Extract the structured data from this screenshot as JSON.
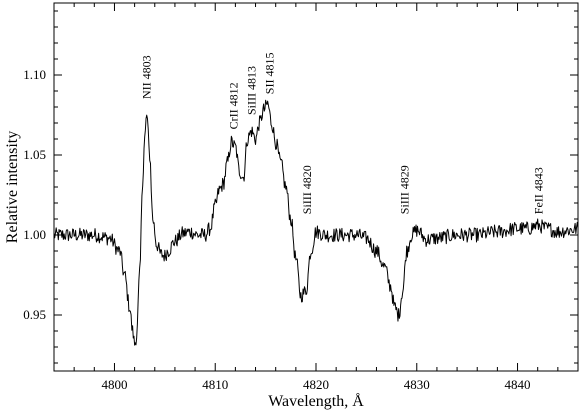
{
  "chart_data": {
    "type": "line",
    "title": "",
    "xlabel": "Wavelength, Å",
    "ylabel": "Relative intensity",
    "xlim": [
      4794,
      4846
    ],
    "ylim": [
      0.915,
      1.145
    ],
    "xticks": [
      4800,
      4810,
      4820,
      4830,
      4840
    ],
    "xtick_labels": [
      "4800",
      "4810",
      "4820",
      "4830",
      "4840"
    ],
    "yticks": [
      0.95,
      1.0,
      1.05,
      1.1
    ],
    "ytick_labels": [
      "0.95",
      "1.00",
      "1.05",
      "1.10"
    ],
    "grid": false,
    "legend": "none",
    "line_color": "#000000",
    "series": [
      {
        "name": "",
        "x": [
          4794.0,
          4796.0,
          4798.0,
          4799.5,
          4800.5,
          4801.0,
          4801.5,
          4801.8,
          4802.0,
          4802.2,
          4802.5,
          4802.8,
          4803.0,
          4803.2,
          4803.5,
          4803.8,
          4804.2,
          4804.6,
          4805.0,
          4805.3,
          4806.0,
          4806.8,
          4807.5,
          4808.3,
          4809.0,
          4809.5,
          4810.0,
          4810.4,
          4810.8,
          4811.2,
          4811.6,
          4812.0,
          4812.4,
          4812.8,
          4813.2,
          4813.6,
          4814.0,
          4814.4,
          4814.8,
          4815.2,
          4815.6,
          4816.0,
          4816.5,
          4817.0,
          4817.5,
          4818.0,
          4818.5,
          4819.0,
          4819.5,
          4820.0,
          4821.0,
          4822.0,
          4823.0,
          4824.0,
          4825.0,
          4826.0,
          4826.8,
          4827.4,
          4827.8,
          4828.2,
          4828.6,
          4829.0,
          4829.5,
          4830.0,
          4831.0,
          4832.0,
          4834.0,
          4836.0,
          4838.0,
          4840.0,
          4841.0,
          4842.0,
          4843.0,
          4844.0,
          4845.0,
          4846.0
        ],
        "y": [
          1.0,
          1.0,
          1.0,
          0.998,
          0.99,
          0.975,
          0.955,
          0.94,
          0.932,
          0.937,
          0.975,
          1.035,
          1.06,
          1.075,
          1.05,
          1.01,
          0.994,
          0.988,
          0.987,
          0.99,
          0.996,
          1.001,
          1.002,
          1.0,
          1.0,
          1.004,
          1.018,
          1.028,
          1.032,
          1.045,
          1.058,
          1.055,
          1.04,
          1.036,
          1.06,
          1.065,
          1.06,
          1.07,
          1.078,
          1.082,
          1.07,
          1.058,
          1.045,
          1.03,
          1.01,
          0.985,
          0.962,
          0.965,
          0.99,
          1.002,
          1.0,
          1.0,
          1.0,
          1.0,
          0.998,
          0.99,
          0.98,
          0.968,
          0.955,
          0.95,
          0.965,
          0.99,
          1.0,
          1.003,
          0.997,
          0.998,
          1.0,
          1.0,
          1.002,
          1.004,
          1.004,
          1.006,
          1.004,
          1.002,
          1.003,
          1.004
        ]
      }
    ],
    "annotations": [
      {
        "text": "NII 4803",
        "x": 4803.2,
        "y": 1.085
      },
      {
        "text": "CrII 4812",
        "x": 4811.8,
        "y": 1.066
      },
      {
        "text": "SiIII 4813",
        "x": 4813.6,
        "y": 1.075
      },
      {
        "text": "SII 4815",
        "x": 4815.4,
        "y": 1.088
      },
      {
        "text": "SiIII 4820",
        "x": 4819.1,
        "y": 1.013
      },
      {
        "text": "SiIII 4829",
        "x": 4828.8,
        "y": 1.013
      },
      {
        "text": "FeII 4843",
        "x": 4842.1,
        "y": 1.013
      }
    ]
  }
}
